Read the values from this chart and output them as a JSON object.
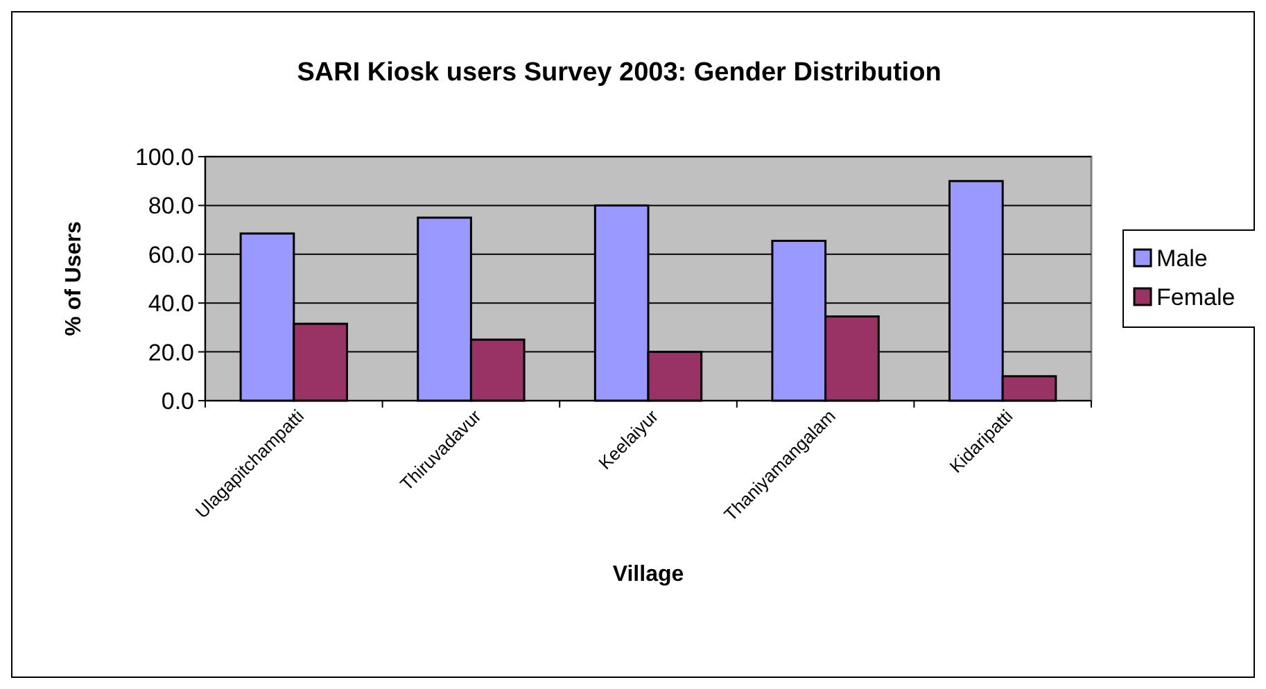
{
  "chart_data": {
    "type": "bar",
    "title": "SARI Kiosk users Survey 2003: Gender Distribution",
    "xlabel": "Village",
    "ylabel": "% of Users",
    "categories": [
      "Ulagapitchampatti",
      "Thiruvadavur",
      "Keelaiyur",
      "Thaniyamangalam",
      "Kidaripatti"
    ],
    "series": [
      {
        "name": "Male",
        "color": "#9999ff",
        "values": [
          68.5,
          75,
          80,
          65.5,
          90
        ]
      },
      {
        "name": "Female",
        "color": "#993366",
        "values": [
          31.5,
          25,
          20,
          34.5,
          10
        ]
      }
    ],
    "ylim": [
      0,
      100
    ],
    "yticks": [
      {
        "value": 0,
        "label": "0.0"
      },
      {
        "value": 20,
        "label": "20.0"
      },
      {
        "value": 40,
        "label": "40.0"
      },
      {
        "value": 60,
        "label": "60.0"
      },
      {
        "value": 80,
        "label": "80.0"
      },
      {
        "value": 100,
        "label": "100.0"
      }
    ],
    "grid": "y",
    "legend": "right"
  }
}
